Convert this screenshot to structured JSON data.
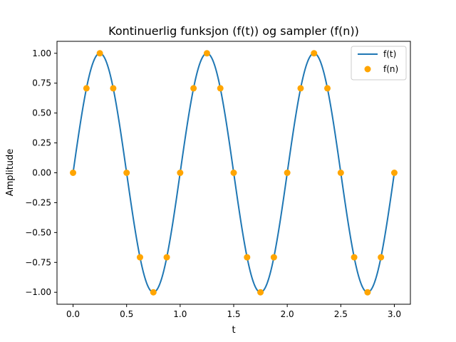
{
  "chart_data": {
    "type": "line",
    "title": "Kontinuerlig funksjon (f(t)) og sampler (f(n))",
    "xlabel": "t",
    "ylabel": "Amplitude",
    "xlim": [
      -0.15,
      3.15
    ],
    "ylim": [
      -1.1,
      1.1
    ],
    "grid": false,
    "legend_position": "top-right",
    "x_ticks": [
      {
        "value": 0.0,
        "label": "0.0"
      },
      {
        "value": 0.5,
        "label": "0.5"
      },
      {
        "value": 1.0,
        "label": "1.0"
      },
      {
        "value": 1.5,
        "label": "1.5"
      },
      {
        "value": 2.0,
        "label": "2.0"
      },
      {
        "value": 2.5,
        "label": "2.5"
      },
      {
        "value": 3.0,
        "label": "3.0"
      }
    ],
    "y_ticks": [
      {
        "value": -1.0,
        "label": "−1.00"
      },
      {
        "value": -0.75,
        "label": "−0.75"
      },
      {
        "value": -0.5,
        "label": "−0.50"
      },
      {
        "value": -0.25,
        "label": "−0.25"
      },
      {
        "value": 0.0,
        "label": "0.00"
      },
      {
        "value": 0.25,
        "label": "0.25"
      },
      {
        "value": 0.5,
        "label": "0.50"
      },
      {
        "value": 0.75,
        "label": "0.75"
      },
      {
        "value": 1.0,
        "label": "1.00"
      }
    ],
    "series": [
      {
        "name": "f(t)",
        "kind": "line",
        "color": "#1f77b4",
        "function": "sin(2*pi*t)",
        "t_range": [
          0,
          3
        ]
      },
      {
        "name": "f(n)",
        "kind": "scatter",
        "color": "#ffa500",
        "x": [
          0.0,
          0.125,
          0.25,
          0.375,
          0.5,
          0.625,
          0.75,
          0.875,
          1.0,
          1.125,
          1.25,
          1.375,
          1.5,
          1.625,
          1.75,
          1.875,
          2.0,
          2.125,
          2.25,
          2.375,
          2.5,
          2.625,
          2.75,
          2.875,
          3.0
        ],
        "y": [
          0.0,
          0.707,
          1.0,
          0.707,
          0.0,
          -0.707,
          -1.0,
          -0.707,
          0.0,
          0.707,
          1.0,
          0.707,
          0.0,
          -0.707,
          -1.0,
          -0.707,
          0.0,
          0.707,
          1.0,
          0.707,
          0.0,
          -0.707,
          -1.0,
          -0.707,
          0.0
        ]
      }
    ]
  }
}
